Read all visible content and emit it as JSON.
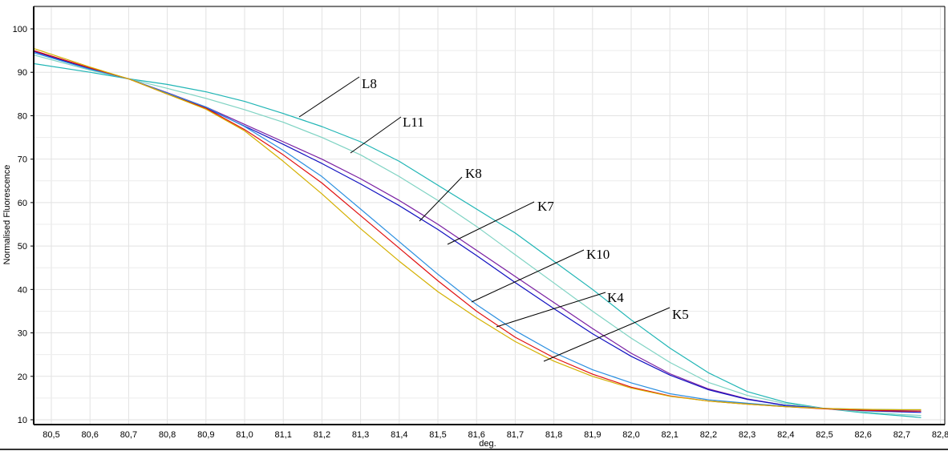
{
  "chart_data": {
    "type": "line",
    "title": "",
    "xlabel": "deg.",
    "ylabel": "Normalised Fluorescence",
    "xlim": [
      80.454,
      82.8
    ],
    "ylim": [
      8.9,
      105.2
    ],
    "grid": true,
    "x_ticks": [
      "80,5",
      "80,6",
      "80,7",
      "80,8",
      "80,9",
      "81,0",
      "81,1",
      "81,2",
      "81,3",
      "81,4",
      "81,5",
      "81,6",
      "81,7",
      "81,8",
      "81,9",
      "82,0",
      "82,1",
      "82,2",
      "82,3",
      "82,4",
      "82,5",
      "82,6",
      "82,7",
      "82,8"
    ],
    "x_tick_values": [
      80.5,
      80.6,
      80.7,
      80.8,
      80.9,
      81.0,
      81.1,
      81.2,
      81.3,
      81.4,
      81.5,
      81.6,
      81.7,
      81.8,
      81.9,
      82.0,
      82.1,
      82.2,
      82.3,
      82.4,
      82.5,
      82.6,
      82.7,
      82.8
    ],
    "y_ticks": [
      "10",
      "20",
      "30",
      "40",
      "50",
      "60",
      "70",
      "80",
      "90",
      "100"
    ],
    "y_tick_values": [
      10,
      20,
      30,
      40,
      50,
      60,
      70,
      80,
      90,
      100
    ],
    "x": [
      80.454,
      80.6,
      80.7,
      80.8,
      80.9,
      81.0,
      81.1,
      81.2,
      81.3,
      81.4,
      81.5,
      81.6,
      81.7,
      81.8,
      81.9,
      82.0,
      82.1,
      82.2,
      82.3,
      82.4,
      82.5,
      82.6,
      82.7,
      82.75
    ],
    "series": [
      {
        "name": "L8",
        "color": "#1fb5b5",
        "values": [
          92,
          90,
          88.5,
          87.2,
          85.5,
          83.3,
          80.5,
          77.5,
          74,
          69.5,
          64,
          58.5,
          53,
          46.5,
          40,
          33,
          26.5,
          20.8,
          16.5,
          14,
          12.6,
          11.6,
          10.9,
          10.5
        ]
      },
      {
        "name": "L11",
        "color": "#7fd3c3",
        "values": [
          94,
          90.5,
          88.5,
          86.3,
          84,
          81.4,
          78.5,
          75,
          71,
          66,
          60.5,
          54.5,
          48,
          41.5,
          35,
          28.8,
          23.2,
          18.6,
          15.6,
          13.7,
          12.6,
          11.8,
          11.2,
          11
        ]
      },
      {
        "name": "K8",
        "color": "#7a1fa2",
        "values": [
          95,
          91,
          88.5,
          85.3,
          82,
          78,
          74,
          70,
          65.5,
          60.5,
          55,
          49,
          43,
          37,
          31,
          25.3,
          20.6,
          17.1,
          14.8,
          13.3,
          12.6,
          12.3,
          12.1,
          12
        ]
      },
      {
        "name": "K7",
        "color": "#1010c0",
        "values": [
          94.8,
          90.8,
          88.5,
          85.2,
          81.8,
          77.6,
          73.4,
          69,
          64.3,
          59.3,
          53.8,
          47.8,
          41.6,
          35.6,
          29.8,
          24.6,
          20.3,
          16.9,
          14.7,
          13.3,
          12.6,
          12.1,
          11.8,
          11.7
        ]
      },
      {
        "name": "K10",
        "color": "#2b8fe0",
        "values": [
          94.5,
          90.7,
          88.5,
          85.2,
          82,
          77.5,
          72,
          66,
          58.5,
          51,
          43.5,
          36.5,
          30.5,
          25.5,
          21.5,
          18.5,
          16,
          14.6,
          13.8,
          13.1,
          12.6,
          12.4,
          12.3,
          12.3
        ]
      },
      {
        "name": "K4",
        "color": "#e01010",
        "values": [
          95,
          91,
          88.5,
          85,
          81.7,
          76.8,
          71,
          64.5,
          57,
          49.5,
          42,
          35,
          29,
          24.3,
          20.5,
          17.5,
          15.5,
          14.3,
          13.6,
          13,
          12.5,
          12.2,
          12,
          12
        ]
      },
      {
        "name": "K5",
        "color": "#d4b000",
        "values": [
          95.5,
          91.2,
          88.5,
          85,
          81.5,
          76.5,
          69.5,
          62,
          54,
          46.5,
          39.5,
          33.5,
          28,
          23.5,
          20,
          17.3,
          15.4,
          14.3,
          13.6,
          13,
          12.6,
          12.4,
          12.3,
          12.3
        ]
      }
    ],
    "annotations": [
      "L8",
      "L11",
      "K8",
      "K7",
      "K10",
      "K4",
      "K5"
    ]
  }
}
